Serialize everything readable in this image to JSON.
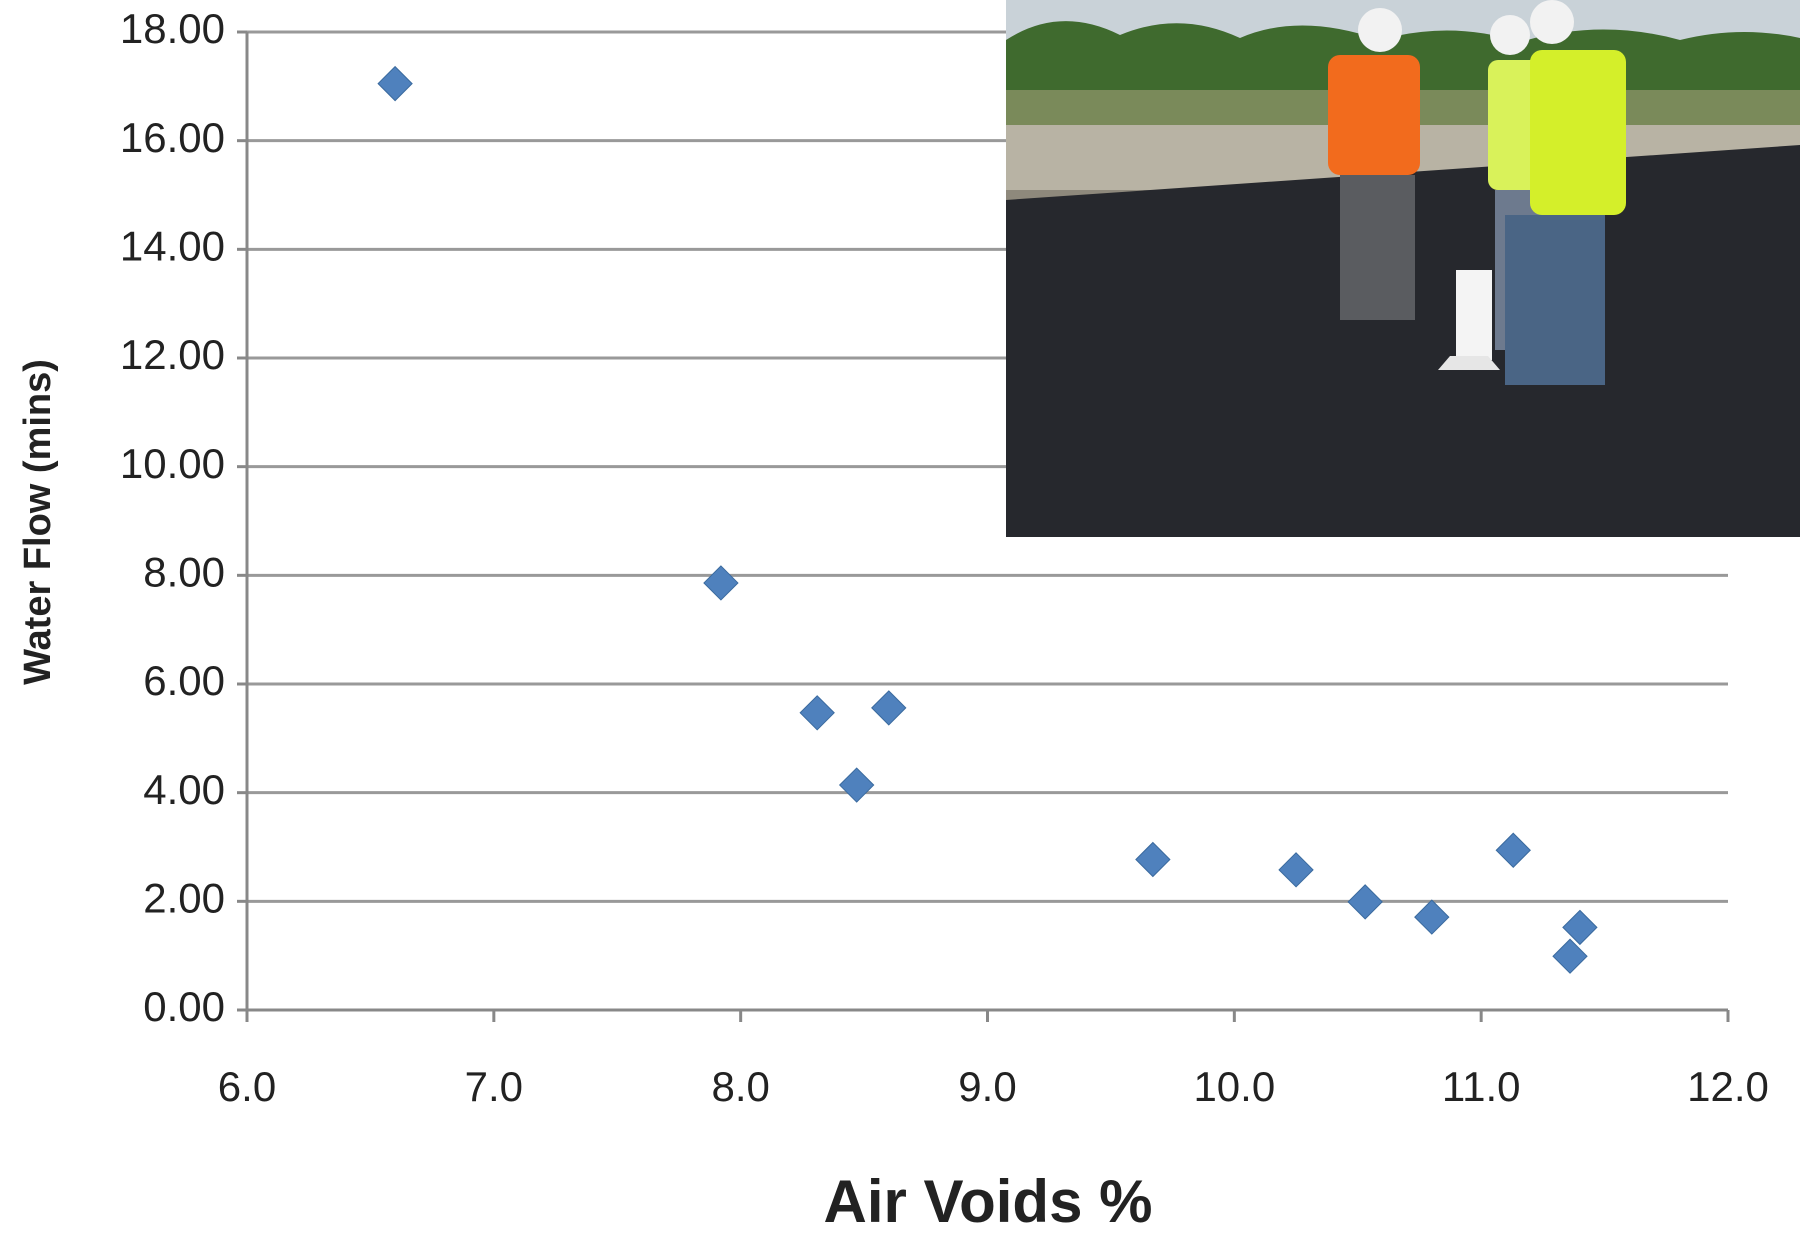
{
  "chart_data": {
    "type": "scatter",
    "x_label": "Air Voids %",
    "y_label": "Water Flow (mins)",
    "x": [
      6.6,
      7.92,
      8.31,
      8.6,
      8.47,
      9.67,
      10.25,
      10.53,
      10.8,
      11.13,
      11.4,
      11.36
    ],
    "values": [
      17.05,
      7.86,
      5.47,
      5.56,
      4.14,
      2.77,
      2.58,
      1.99,
      1.71,
      2.94,
      1.52,
      0.99
    ],
    "color": "#4f81bd",
    "xlim": [
      6,
      12
    ],
    "xticks": [
      {
        "value": 6,
        "label": "6.0"
      },
      {
        "value": 7,
        "label": "7.0"
      },
      {
        "value": 8,
        "label": "8.0"
      },
      {
        "value": 9,
        "label": "9.0"
      },
      {
        "value": 10,
        "label": "10.0"
      },
      {
        "value": 11,
        "label": "11.0"
      },
      {
        "value": 12,
        "label": "12.0"
      }
    ],
    "ylim": [
      0,
      18
    ],
    "yticks": [
      {
        "value": 0,
        "label": "0.00"
      },
      {
        "value": 2,
        "label": "2.00"
      },
      {
        "value": 4,
        "label": "4.00"
      },
      {
        "value": 6,
        "label": "6.00"
      },
      {
        "value": 8,
        "label": "8.00"
      },
      {
        "value": 10,
        "label": "10.00"
      },
      {
        "value": 12,
        "label": "12.00"
      },
      {
        "value": 14,
        "label": "14.00"
      },
      {
        "value": 16,
        "label": "16.00"
      },
      {
        "value": 18,
        "label": "18.00"
      }
    ],
    "grid": true
  }
}
